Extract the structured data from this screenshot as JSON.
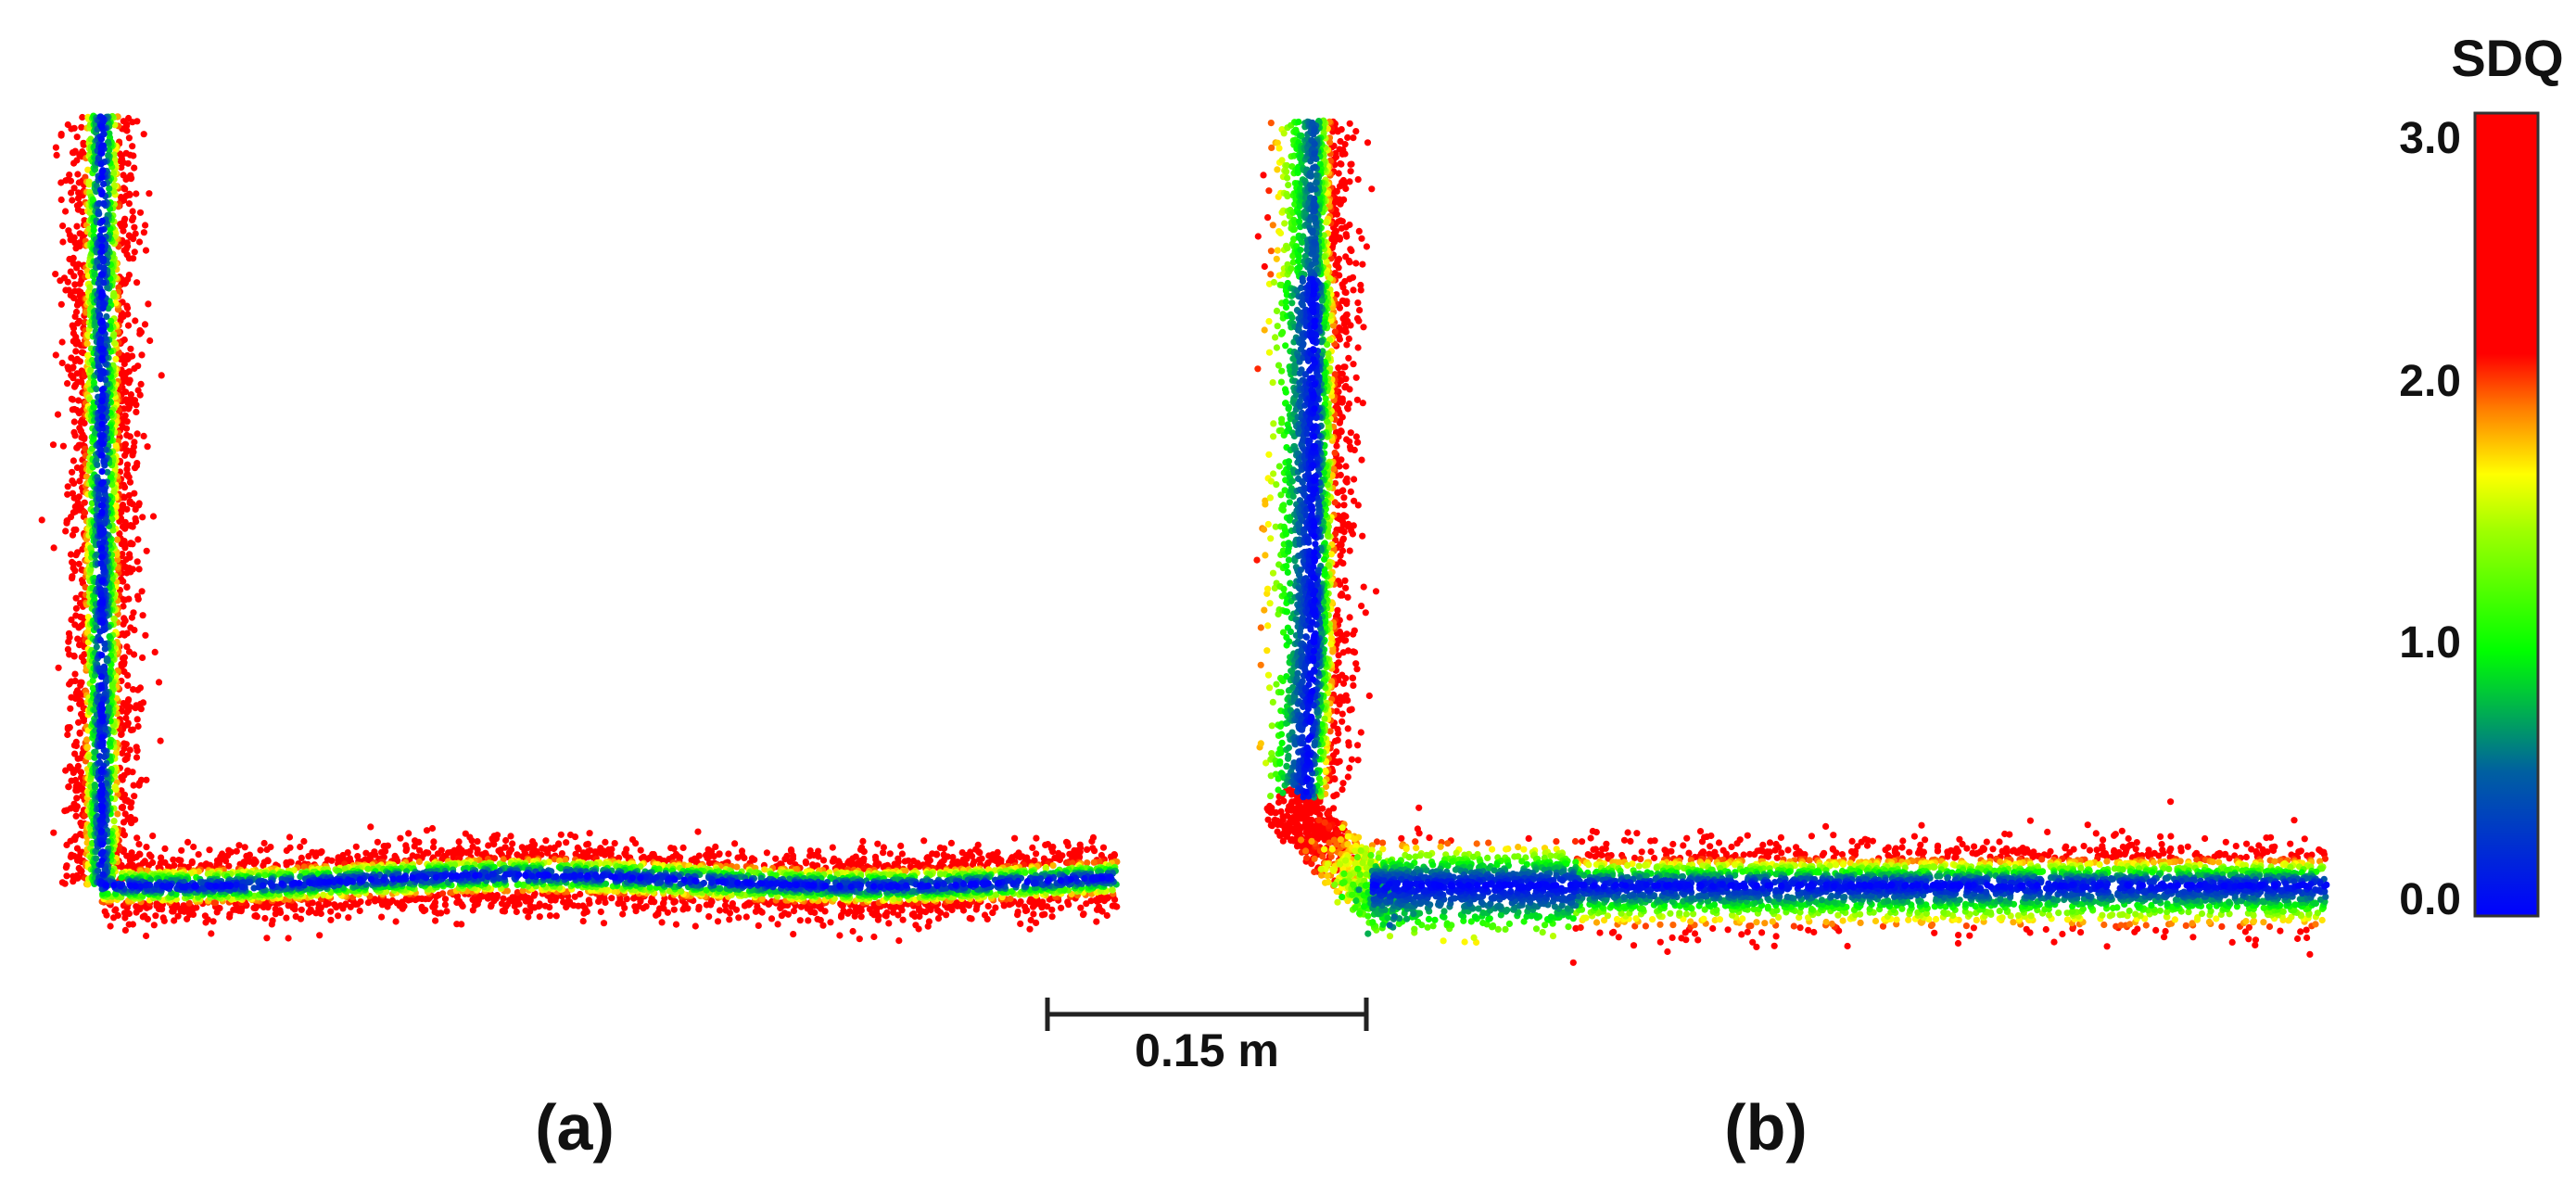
{
  "figure": {
    "panels": [
      {
        "id": "a",
        "label": "(a)"
      },
      {
        "id": "b",
        "label": "(b)"
      }
    ],
    "scale_bar": {
      "label": "0.15 m"
    },
    "colorbar": {
      "title": "SDQ",
      "ticks": [
        "3.0",
        "2.0",
        "1.0",
        "0.0"
      ],
      "tick_values": [
        3.0,
        2.0,
        1.0,
        0.0
      ],
      "range": [
        0.0,
        3.0
      ],
      "colormap": [
        "#0000ff",
        "#00d060",
        "#00ff00",
        "#ffff00",
        "#ff8000",
        "#ff0000"
      ]
    }
  }
}
